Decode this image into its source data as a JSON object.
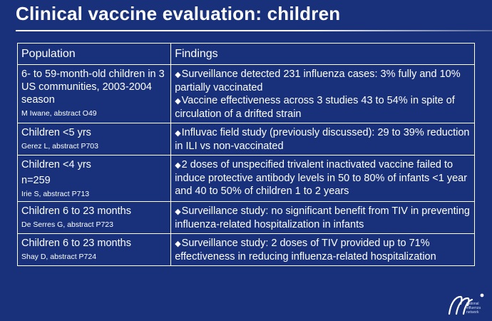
{
  "slide": {
    "title": "Clinical vaccine evaluation: children"
  },
  "table": {
    "headers": [
      "Population",
      "Findings"
    ],
    "rows": [
      {
        "population": [
          "6- to 59-month-old children in 3 US communities, 2003-2004 season"
        ],
        "reference": "M Iwane, abstract O49",
        "findings": [
          "Surveillance detected 231 influenza cases: 3% fully and 10% partially vaccinated",
          "Vaccine effectiveness across 3 studies 43 to 54% in spite of circulation of a drifted strain"
        ]
      },
      {
        "population": [
          "Children <5 yrs"
        ],
        "reference": "Gerez L, abstract P703",
        "findings": [
          "Influvac field study (previously discussed): 29 to 39% reduction in ILI vs non-vaccinated"
        ]
      },
      {
        "population": [
          "Children <4 yrs",
          "n=259"
        ],
        "reference": "Irie S, abstract P713",
        "findings": [
          "2 doses of unspecified trivalent inactivated vaccine failed to induce protective antibody levels in 50 to 80% of infants <1 year and 40 to 50% of children 1 to 2 years"
        ]
      },
      {
        "population": [
          "Children 6 to 23 months"
        ],
        "reference": "De Serres G, abstract P723",
        "findings": [
          "Surveillance study: no significant benefit from TIV in preventing influenza-related hospitalization in infants"
        ]
      },
      {
        "population": [
          "Children 6 to 23 months"
        ],
        "reference": "Shay D, abstract P724",
        "findings": [
          "Surveillance study: 2 doses of TIV provided up to 71% effectiveness in reducing influenza-related hospitalization"
        ]
      }
    ]
  },
  "logo": {
    "lines": [
      "national",
      "influenza",
      "network"
    ]
  },
  "colors": {
    "background": "#18317a",
    "text": "#ffffff",
    "rule": "#ffffff"
  }
}
